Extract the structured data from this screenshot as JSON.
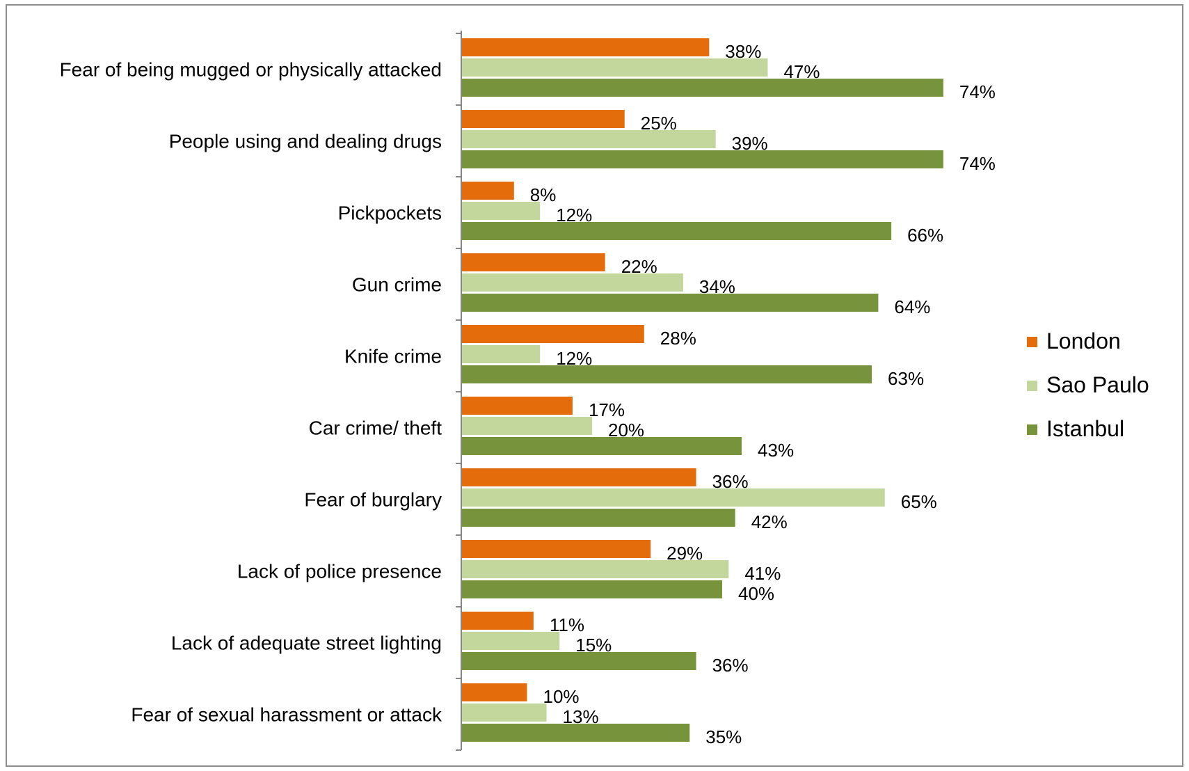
{
  "chart_data": {
    "type": "bar",
    "orientation": "horizontal",
    "categories": [
      "Fear of being mugged or physically attacked",
      "People using and dealing drugs",
      "Pickpockets",
      "Gun crime",
      "Knife crime",
      "Car crime/ theft",
      "Fear of burglary",
      "Lack of police presence",
      "Lack of adequate street lighting",
      "Fear of sexual harassment or attack"
    ],
    "series": [
      {
        "name": "London",
        "color": "#E46C0A",
        "values": [
          38,
          25,
          8,
          22,
          28,
          17,
          36,
          29,
          11,
          10
        ]
      },
      {
        "name": "Sao Paulo",
        "color": "#C3D69B",
        "values": [
          47,
          39,
          12,
          34,
          12,
          20,
          65,
          41,
          15,
          13
        ]
      },
      {
        "name": "Istanbul",
        "color": "#77933C",
        "values": [
          74,
          74,
          66,
          64,
          63,
          43,
          42,
          40,
          36,
          35
        ]
      }
    ],
    "value_suffix": "%",
    "xlim": [
      0,
      100
    ],
    "grid": false,
    "legend_position": "right",
    "title": "",
    "xlabel": "",
    "ylabel": ""
  }
}
